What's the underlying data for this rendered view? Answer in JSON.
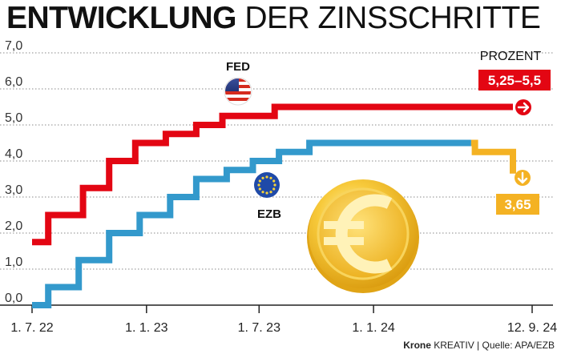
{
  "title": {
    "bold": "ENTWICKLUNG",
    "light": "DER ZINSSCHRITTE"
  },
  "footer": {
    "brand": "Krone",
    "rest": "KREATIV | Quelle: APA/EZB"
  },
  "chart_data": {
    "type": "line",
    "unit_label": "PROZENT",
    "yticks": [
      "0,0",
      "1,0",
      "2,0",
      "3,0",
      "4,0",
      "5,0",
      "6,0",
      "7,0"
    ],
    "ylim": [
      0,
      7
    ],
    "xticks": [
      {
        "label": "1. 7. 22",
        "date": "2022-07-01"
      },
      {
        "label": "1. 1. 23",
        "date": "2023-01-01"
      },
      {
        "label": "1. 7. 23",
        "date": "2023-07-01"
      },
      {
        "label": "1. 1. 24",
        "date": "2024-01-01"
      },
      {
        "label": "12. 9. 24",
        "date": "2024-09-12"
      }
    ],
    "xlim": [
      "2022-07-01",
      "2024-09-12"
    ],
    "series": [
      {
        "name": "FED",
        "color": "#e30613",
        "flag": "us-flag",
        "end_label": "5,25–5,5",
        "end_icon": "arrow-right-icon",
        "steps": [
          {
            "date": "2022-07-01",
            "value": 1.75
          },
          {
            "date": "2022-07-27",
            "value": 2.5
          },
          {
            "date": "2022-09-21",
            "value": 3.25
          },
          {
            "date": "2022-11-02",
            "value": 4.0
          },
          {
            "date": "2022-12-14",
            "value": 4.5
          },
          {
            "date": "2023-02-01",
            "value": 4.75
          },
          {
            "date": "2023-03-22",
            "value": 5.0
          },
          {
            "date": "2023-05-03",
            "value": 5.25
          },
          {
            "date": "2023-07-26",
            "value": 5.5
          },
          {
            "date": "2024-09-12",
            "value": 5.5
          }
        ]
      },
      {
        "name": "EZB",
        "color": "#3399cc",
        "flag": "eu-flag",
        "end_label": "3,65",
        "end_icon": "arrow-down-icon",
        "end_color": "#f4b223",
        "end_color_from": "2024-06-06",
        "steps": [
          {
            "date": "2022-07-01",
            "value": 0.0
          },
          {
            "date": "2022-07-27",
            "value": 0.5
          },
          {
            "date": "2022-09-14",
            "value": 1.25
          },
          {
            "date": "2022-11-02",
            "value": 2.0
          },
          {
            "date": "2022-12-21",
            "value": 2.5
          },
          {
            "date": "2023-02-08",
            "value": 3.0
          },
          {
            "date": "2023-03-22",
            "value": 3.5
          },
          {
            "date": "2023-05-10",
            "value": 3.75
          },
          {
            "date": "2023-06-21",
            "value": 4.0
          },
          {
            "date": "2023-08-02",
            "value": 4.25
          },
          {
            "date": "2023-09-20",
            "value": 4.5
          },
          {
            "date": "2024-06-12",
            "value": 4.25
          },
          {
            "date": "2024-09-18",
            "value": 3.65
          },
          {
            "date": "2024-09-12",
            "value": 3.65
          }
        ]
      }
    ],
    "grid": "dotted horizontal",
    "decoration": "euro-coin"
  }
}
